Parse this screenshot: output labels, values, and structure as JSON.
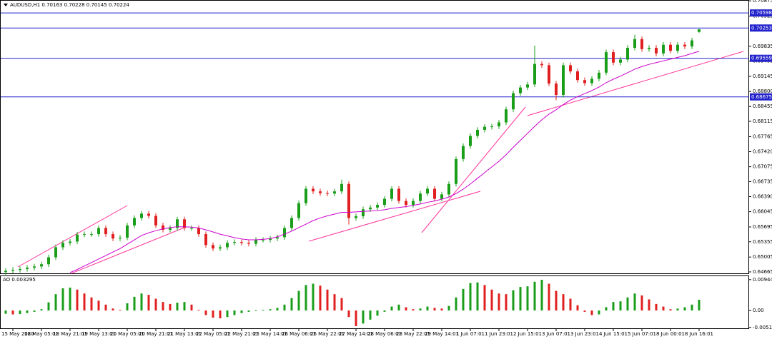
{
  "chart_data": [
    {
      "type": "candlestick",
      "title": "AUDUSD,H1  0.70163 0.70228 0.70145 0.70224",
      "categories": [
        null,
        "15 May 2020",
        null,
        null,
        null,
        "18 May 05:01",
        null,
        null,
        null,
        "18 May 21:01",
        null,
        null,
        null,
        "19 May 13:01",
        null,
        null,
        null,
        "20 May 05:01",
        null,
        null,
        null,
        "20 May 21:01",
        null,
        null,
        null,
        "21 May 13:01",
        null,
        null,
        null,
        "22 May 05:01",
        null,
        null,
        null,
        "22 May 21:01",
        null,
        null,
        null,
        "25 May 14:01",
        null,
        null,
        null,
        "26 May 06:01",
        null,
        null,
        null,
        "26 May 22:01",
        null,
        null,
        null,
        "27 May 14:01",
        null,
        null,
        null,
        "28 May 06:01",
        null,
        null,
        null,
        "28 May 22:01",
        null,
        null,
        null,
        "29 May 14:01",
        null,
        null,
        null,
        "1 Jun 07:01",
        null,
        null,
        null,
        "1 Jun 23:01",
        null,
        null,
        null,
        "2 Jun 15:01",
        null,
        null,
        null,
        "3 Jun 07:01",
        null,
        null,
        null,
        "3 Jun 23:01",
        null,
        null,
        null,
        "4 Jun 15:01",
        null,
        null,
        null,
        "5 Jun 07:01",
        null,
        null,
        null,
        "8 Jun 00:01",
        null,
        null,
        null,
        "8 Jun 16:01"
      ],
      "open": [
        0.6466,
        0.6469,
        0.6471,
        0.6473,
        0.6476,
        0.6479,
        0.6484,
        0.65,
        0.6523,
        0.6533,
        0.6536,
        0.6552,
        0.6553,
        0.6553,
        0.6567,
        0.6553,
        0.6543,
        0.6545,
        0.6573,
        0.659,
        0.66,
        0.6595,
        0.6573,
        0.6563,
        0.6567,
        0.6587,
        0.6567,
        0.6567,
        0.6553,
        0.6528,
        0.652,
        0.6523,
        0.6533,
        0.6535,
        0.6533,
        0.6531,
        0.654,
        0.654,
        0.6543,
        0.6546,
        0.6567,
        0.659,
        0.6624,
        0.6657,
        0.6651,
        0.6647,
        0.6646,
        0.6651,
        0.6668,
        0.659,
        0.6594,
        0.661,
        0.6614,
        0.662,
        0.6634,
        0.6657,
        0.6629,
        0.662,
        0.6629,
        0.6646,
        0.6657,
        0.6634,
        0.6644,
        0.6668,
        0.6725,
        0.6755,
        0.6778,
        0.6792,
        0.6799,
        0.68,
        0.6809,
        0.6839,
        0.6876,
        0.6889,
        0.6896,
        0.6943,
        0.694,
        0.6898,
        0.6872,
        0.694,
        0.6926,
        0.6906,
        0.6899,
        0.6909,
        0.6923,
        0.697,
        0.6946,
        0.6953,
        0.698,
        0.7,
        0.6977,
        0.698,
        0.6967,
        0.6987,
        0.6973,
        0.6987,
        0.6983,
        0.70163
      ],
      "high": [
        0.6475,
        0.6477,
        0.6479,
        0.6482,
        0.6485,
        0.649,
        0.6506,
        0.6529,
        0.6539,
        0.6542,
        0.6558,
        0.6559,
        0.6559,
        0.6573,
        0.6573,
        0.6559,
        0.6551,
        0.6579,
        0.6596,
        0.6606,
        0.6606,
        0.6601,
        0.6579,
        0.6573,
        0.6593,
        0.6593,
        0.6573,
        0.6573,
        0.6559,
        0.6534,
        0.6529,
        0.6539,
        0.6541,
        0.6541,
        0.6539,
        0.6546,
        0.6546,
        0.6549,
        0.6552,
        0.6573,
        0.6596,
        0.663,
        0.6663,
        0.6663,
        0.6657,
        0.6653,
        0.6657,
        0.6678,
        0.6674,
        0.66,
        0.6616,
        0.662,
        0.6626,
        0.664,
        0.6663,
        0.6663,
        0.6635,
        0.6635,
        0.6652,
        0.6663,
        0.6663,
        0.665,
        0.6674,
        0.6731,
        0.6761,
        0.6784,
        0.6798,
        0.6805,
        0.6806,
        0.6815,
        0.6845,
        0.6882,
        0.6895,
        0.6902,
        0.6985,
        0.6949,
        0.6946,
        0.6904,
        0.6946,
        0.6946,
        0.6932,
        0.6912,
        0.6915,
        0.6929,
        0.6976,
        0.6976,
        0.6959,
        0.6986,
        0.701,
        0.7006,
        0.6986,
        0.6986,
        0.6993,
        0.6993,
        0.6993,
        0.6993,
        0.7003,
        0.70228
      ],
      "low": [
        0.646,
        0.6463,
        0.6465,
        0.6467,
        0.647,
        0.6473,
        0.6478,
        0.6494,
        0.6517,
        0.6527,
        0.653,
        0.6546,
        0.6547,
        0.6547,
        0.6547,
        0.6537,
        0.6537,
        0.6539,
        0.6567,
        0.6584,
        0.6589,
        0.6567,
        0.6557,
        0.6557,
        0.6561,
        0.6561,
        0.6561,
        0.6547,
        0.6522,
        0.6514,
        0.6514,
        0.6517,
        0.6527,
        0.6527,
        0.6525,
        0.6525,
        0.6534,
        0.6534,
        0.6537,
        0.654,
        0.6561,
        0.6584,
        0.6618,
        0.6645,
        0.6641,
        0.664,
        0.664,
        0.6645,
        0.6575,
        0.6584,
        0.6588,
        0.6604,
        0.6608,
        0.6614,
        0.6628,
        0.6623,
        0.6614,
        0.6614,
        0.6623,
        0.664,
        0.6628,
        0.6628,
        0.6638,
        0.6662,
        0.6719,
        0.6749,
        0.6772,
        0.6786,
        0.6793,
        0.6794,
        0.6803,
        0.6833,
        0.687,
        0.6883,
        0.689,
        0.6934,
        0.6892,
        0.686,
        0.6866,
        0.692,
        0.69,
        0.6893,
        0.6893,
        0.6903,
        0.6917,
        0.694,
        0.694,
        0.6947,
        0.6974,
        0.6971,
        0.6971,
        0.6961,
        0.6961,
        0.6967,
        0.6967,
        0.6977,
        0.6977,
        0.70145
      ],
      "close": [
        0.6469,
        0.6471,
        0.6473,
        0.6476,
        0.6479,
        0.6484,
        0.65,
        0.6523,
        0.6533,
        0.6536,
        0.6552,
        0.6553,
        0.6553,
        0.6567,
        0.6553,
        0.6543,
        0.6545,
        0.6573,
        0.659,
        0.66,
        0.6595,
        0.6573,
        0.6563,
        0.6567,
        0.6587,
        0.6567,
        0.6567,
        0.6553,
        0.6528,
        0.652,
        0.6523,
        0.6533,
        0.6535,
        0.6533,
        0.6531,
        0.654,
        0.654,
        0.6543,
        0.6546,
        0.6567,
        0.659,
        0.6624,
        0.6657,
        0.6651,
        0.6647,
        0.6646,
        0.6651,
        0.6668,
        0.659,
        0.6594,
        0.661,
        0.6614,
        0.662,
        0.6634,
        0.6657,
        0.6629,
        0.662,
        0.6629,
        0.6646,
        0.6657,
        0.6634,
        0.6644,
        0.6668,
        0.6725,
        0.6755,
        0.6778,
        0.6792,
        0.6799,
        0.68,
        0.6809,
        0.6839,
        0.6876,
        0.6889,
        0.6896,
        0.6943,
        0.694,
        0.6898,
        0.6872,
        0.694,
        0.6926,
        0.6906,
        0.6899,
        0.6909,
        0.6923,
        0.697,
        0.6946,
        0.6953,
        0.698,
        0.7,
        0.6977,
        0.698,
        0.6967,
        0.6987,
        0.6973,
        0.6987,
        0.6983,
        0.6997,
        0.70224
      ],
      "ma_values": [
        null,
        null,
        null,
        null,
        null,
        null,
        null,
        null,
        null,
        0.6465,
        0.6472,
        0.648,
        0.6488,
        0.6496,
        0.6504,
        0.6512,
        0.652,
        0.653,
        0.654,
        0.655,
        0.6556,
        0.6561,
        0.6565,
        0.6568,
        0.657,
        0.657,
        0.6569,
        0.6567,
        0.6563,
        0.6558,
        0.6553,
        0.6549,
        0.6545,
        0.6542,
        0.654,
        0.654,
        0.6541,
        0.6543,
        0.6547,
        0.6553,
        0.656,
        0.6568,
        0.6576,
        0.6584,
        0.659,
        0.6595,
        0.6599,
        0.6603,
        0.6603,
        0.6604,
        0.6605,
        0.6606,
        0.6607,
        0.6609,
        0.6612,
        0.6614,
        0.6616,
        0.6619,
        0.6622,
        0.6626,
        0.6629,
        0.6633,
        0.6638,
        0.6646,
        0.6656,
        0.6668,
        0.6681,
        0.6694,
        0.6707,
        0.672,
        0.6735,
        0.6752,
        0.6768,
        0.6784,
        0.68,
        0.6815,
        0.6828,
        0.6838,
        0.685,
        0.686,
        0.6868,
        0.6875,
        0.6882,
        0.689,
        0.69,
        0.6908,
        0.6915,
        0.6923,
        0.6931,
        0.6937,
        0.6942,
        0.6946,
        0.695,
        0.6954,
        0.6958,
        0.6962,
        0.6967,
        0.6972
      ],
      "ma_color": "#cc00cc",
      "up_color": "#1a9e1a",
      "down_color": "#e02020",
      "levels": [
        0.70598,
        0.70253,
        0.69559,
        0.68675
      ],
      "level_color": "#2222cc",
      "ylim": [
        0.64632,
        0.70895
      ],
      "yticks": [
        0.70875,
        0.70525,
        0.69835,
        0.69495,
        0.69145,
        {
          "value": 0.688,
          "label": "0.68800"
        },
        0.68455,
        0.68115,
        0.67765,
        {
          "value": 0.6742,
          "label": "0.67420"
        },
        0.67075,
        0.66735,
        {
          "value": 0.6639,
          "label": "0.66390"
        },
        0.66045,
        0.65695,
        0.65355,
        0.65005,
        0.64665
      ]
    },
    {
      "type": "histogram",
      "title": "AO 0.003295",
      "values": [
        -0.001,
        -0.0012,
        -0.0011,
        -0.0008,
        -0.0004,
        0.0004,
        0.0025,
        0.005,
        0.0068,
        0.007,
        0.0064,
        0.0052,
        0.004,
        0.003,
        0.0018,
        0.0006,
        0.0002,
        0.0022,
        0.0042,
        0.0052,
        0.0048,
        0.0036,
        0.0026,
        0.002,
        0.0024,
        0.0026,
        0.0018,
        0.0002,
        -0.0014,
        -0.0022,
        -0.0024,
        -0.002,
        -0.0014,
        -0.0008,
        -0.0004,
        -0.0002,
        0.0002,
        0.0004,
        0.0008,
        0.0018,
        0.0038,
        0.006,
        0.0078,
        0.0082,
        0.0076,
        0.0064,
        0.005,
        0.0038,
        -0.002,
        -0.0048,
        -0.004,
        -0.0028,
        -0.0016,
        -0.0004,
        0.0012,
        0.0018,
        0.001,
        0.0004,
        0.0006,
        0.0012,
        0.0008,
        0.0006,
        0.0014,
        0.004,
        0.0066,
        0.0084,
        0.0086,
        0.0078,
        0.0064,
        0.0052,
        0.005,
        0.0062,
        0.0072,
        0.0074,
        0.0088,
        0.0094,
        0.0082,
        0.006,
        0.005,
        0.0036,
        0.0016,
        -0.0004,
        -0.0014,
        -0.0012,
        0.001,
        0.0026,
        0.0028,
        0.004,
        0.0052,
        0.0046,
        0.0034,
        0.002,
        0.0012,
        0.0004,
        0.0006,
        0.001,
        0.0018,
        0.003295
      ],
      "up_color": "#1a9e1a",
      "down_color": "#e02020",
      "ylim": [
        -0.00567,
        0.0105
      ],
      "yticks": [
        0.009448,
        {
          "value": 0,
          "label": "0.00"
        },
        -0.00518
      ]
    }
  ]
}
